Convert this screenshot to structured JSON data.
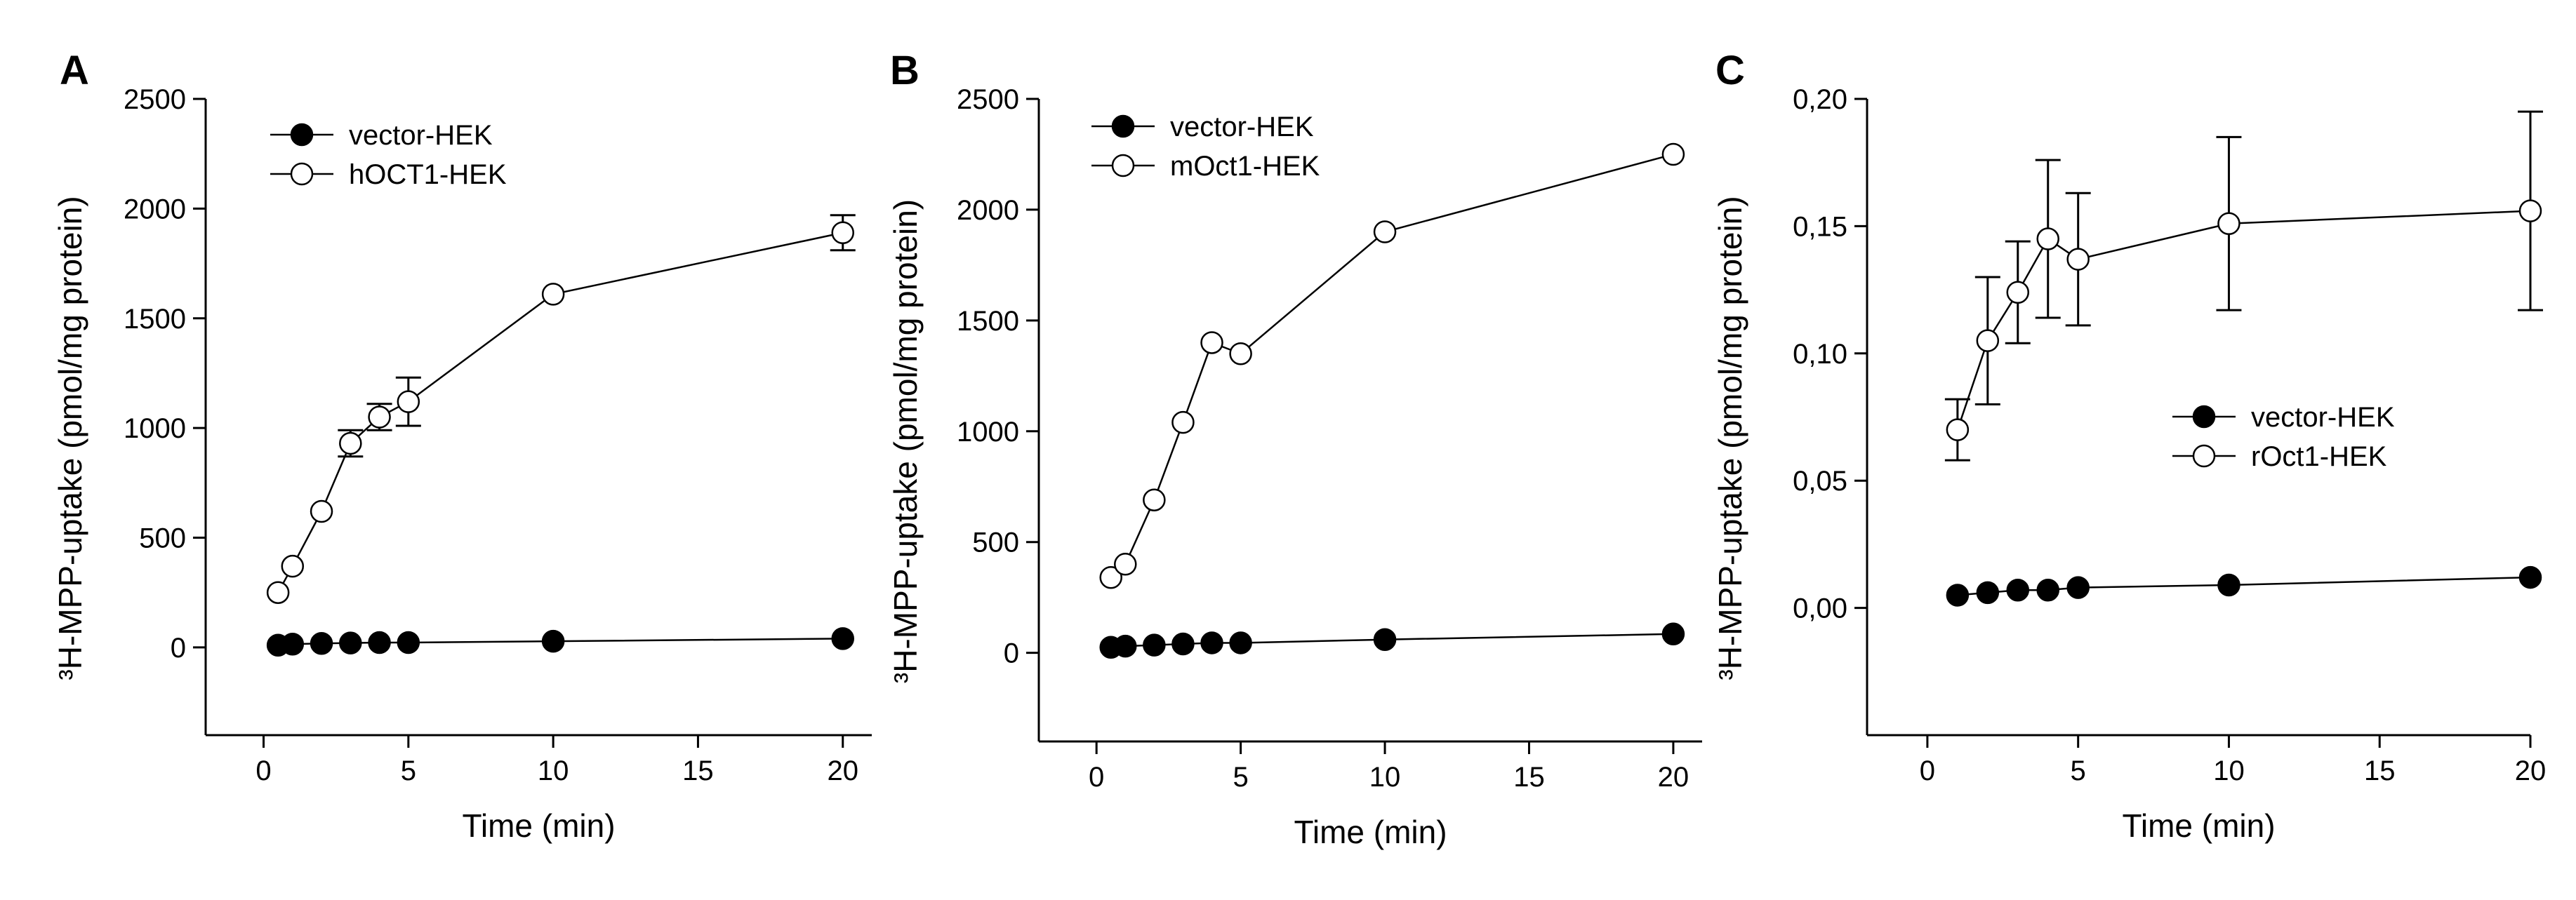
{
  "chart_data": [
    {
      "type": "line",
      "panel_label": "A",
      "title": "",
      "xlabel": "Time (min)",
      "ylabel": "³H-MPP-uptake (pmol/mg protein)",
      "xlim": [
        -2,
        21
      ],
      "ylim": [
        -400,
        2500
      ],
      "xticks": [
        0,
        5,
        10,
        15,
        20
      ],
      "xtick_labels": [
        "0",
        "5",
        "10",
        "15",
        "20"
      ],
      "yticks": [
        0,
        500,
        1000,
        1500,
        2000,
        2500
      ],
      "ytick_labels": [
        "0",
        "500",
        "1000",
        "1500",
        "2000",
        "2500"
      ],
      "legend_position": "top-left",
      "series": [
        {
          "name": "vector-HEK",
          "marker": "filled-circle",
          "x": [
            0.5,
            1,
            2,
            3,
            4,
            5,
            10,
            20
          ],
          "y": [
            10,
            15,
            18,
            20,
            22,
            22,
            28,
            40
          ],
          "err": [
            3,
            3,
            3,
            3,
            3,
            3,
            4,
            5
          ]
        },
        {
          "name": "hOCT1-HEK",
          "marker": "open-circle",
          "x": [
            0.5,
            1,
            2,
            3,
            4,
            5,
            10,
            20
          ],
          "y": [
            250,
            370,
            620,
            930,
            1050,
            1120,
            1610,
            1890
          ],
          "err": [
            40,
            30,
            50,
            60,
            60,
            110,
            20,
            80
          ]
        }
      ]
    },
    {
      "type": "line",
      "panel_label": "B",
      "title": "",
      "xlabel": "Time (min)",
      "ylabel": "³H-MPP-uptake (pmol/mg protein)",
      "xlim": [
        -2,
        21
      ],
      "ylim": [
        -400,
        2500
      ],
      "xticks": [
        0,
        5,
        10,
        15,
        20
      ],
      "xtick_labels": [
        "0",
        "5",
        "10",
        "15",
        "20"
      ],
      "yticks": [
        0,
        500,
        1000,
        1500,
        2000,
        2500
      ],
      "ytick_labels": [
        "0",
        "500",
        "1000",
        "1500",
        "2000",
        "2500"
      ],
      "legend_position": "top-left",
      "series": [
        {
          "name": "vector-HEK",
          "marker": "filled-circle",
          "x": [
            0.5,
            1,
            2,
            3,
            4,
            5,
            10,
            20
          ],
          "y": [
            25,
            30,
            35,
            40,
            45,
            45,
            60,
            85
          ],
          "err": [
            3,
            3,
            3,
            3,
            3,
            3,
            4,
            5
          ]
        },
        {
          "name": "mOct1-HEK",
          "marker": "open-circle",
          "x": [
            0.5,
            1,
            2,
            3,
            4,
            5,
            10,
            20
          ],
          "y": [
            340,
            400,
            690,
            1040,
            1400,
            1350,
            1900,
            2250
          ],
          "err": [
            10,
            10,
            10,
            15,
            15,
            20,
            10,
            50
          ]
        }
      ]
    },
    {
      "type": "line",
      "panel_label": "C",
      "title": "",
      "xlabel": "Time (min)",
      "ylabel": "³H-MPP-uptake (pmol/mg protein)",
      "xlim": [
        -2,
        20
      ],
      "ylim": [
        -0.05,
        0.2
      ],
      "xticks": [
        0,
        5,
        10,
        15,
        20
      ],
      "xtick_labels": [
        "0",
        "5",
        "10",
        "15",
        "20"
      ],
      "yticks": [
        0,
        0.05,
        0.1,
        0.15,
        0.2
      ],
      "ytick_labels": [
        "0,00",
        "0,05",
        "0,10",
        "0,15",
        "0,20"
      ],
      "legend_position": "center-right",
      "series": [
        {
          "name": "vector-HEK",
          "marker": "filled-circle",
          "x": [
            1,
            2,
            3,
            4,
            5,
            10,
            20
          ],
          "y": [
            0.005,
            0.006,
            0.007,
            0.007,
            0.008,
            0.009,
            0.012
          ],
          "err": [
            0.001,
            0.001,
            0.001,
            0.001,
            0.001,
            0.001,
            0.001
          ]
        },
        {
          "name": "rOct1-HEK",
          "marker": "open-circle",
          "x": [
            1,
            2,
            3,
            4,
            5,
            10,
            20
          ],
          "y": [
            0.07,
            0.105,
            0.124,
            0.145,
            0.137,
            0.151,
            0.156
          ],
          "err": [
            0.012,
            0.025,
            0.02,
            0.031,
            0.026,
            0.034,
            0.039
          ]
        }
      ]
    }
  ]
}
